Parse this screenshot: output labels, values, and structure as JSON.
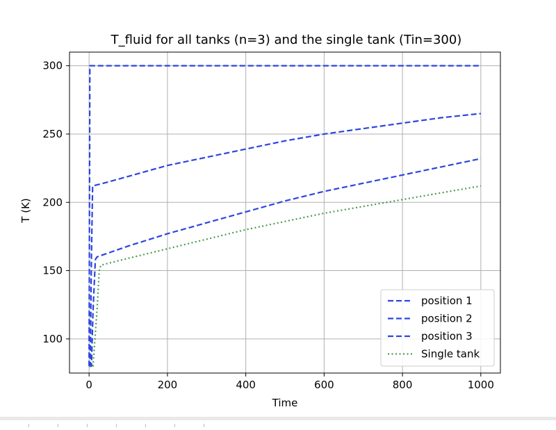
{
  "chart_data": {
    "type": "line",
    "title": "T_fluid for all tanks (n=3) and the single tank (Tin=300)",
    "xlabel": "Time",
    "ylabel": "T (K)",
    "xlim": [
      -50,
      1050
    ],
    "ylim": [
      75,
      310
    ],
    "xticks": [
      0,
      200,
      400,
      600,
      800,
      1000
    ],
    "yticks": [
      100,
      150,
      200,
      250,
      300
    ],
    "grid": true,
    "legend_position": "lower right",
    "series": [
      {
        "name": "position 1",
        "style": "dashed",
        "color": "#2b44e0",
        "x": [
          0,
          2,
          5,
          1000
        ],
        "y": [
          80,
          300,
          300,
          300
        ]
      },
      {
        "name": "position 2",
        "style": "dashed",
        "color": "#2b44e0",
        "x": [
          0,
          3,
          6,
          9,
          10,
          50,
          100,
          200,
          300,
          400,
          500,
          600,
          700,
          800,
          900,
          1000
        ],
        "y": [
          80,
          80,
          160,
          212,
          212,
          215,
          219,
          227,
          233,
          239,
          245,
          250,
          254,
          258,
          262,
          265
        ]
      },
      {
        "name": "position 3",
        "style": "dashed",
        "color": "#2b44e0",
        "x": [
          0,
          6,
          10,
          16,
          20,
          50,
          100,
          200,
          300,
          400,
          500,
          600,
          700,
          800,
          900,
          1000
        ],
        "y": [
          80,
          80,
          120,
          158,
          160,
          163,
          168,
          177,
          185,
          193,
          201,
          208,
          214,
          220,
          226,
          232
        ]
      },
      {
        "name": "Single tank",
        "style": "dotted",
        "color": "#4a9a4a",
        "x": [
          0,
          10,
          20,
          26,
          30,
          100,
          200,
          300,
          400,
          500,
          600,
          700,
          800,
          900,
          1000
        ],
        "y": [
          80,
          80,
          120,
          150,
          154,
          159,
          166,
          173,
          180,
          186,
          192,
          197,
          202,
          207,
          212
        ]
      }
    ]
  }
}
